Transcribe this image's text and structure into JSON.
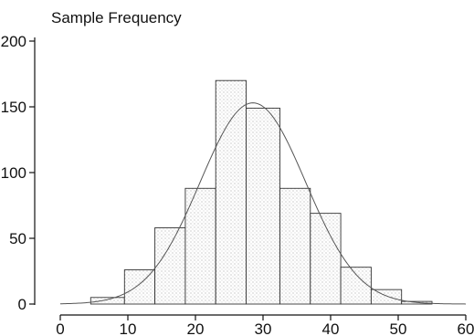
{
  "chart_data": {
    "type": "bar",
    "title": "Sample Frequency",
    "xlabel": "",
    "ylabel": "",
    "xlim": [
      0,
      60
    ],
    "ylim": [
      0,
      200
    ],
    "x_ticks": [
      0,
      10,
      20,
      30,
      40,
      50,
      60
    ],
    "y_ticks": [
      0,
      50,
      100,
      150,
      200
    ],
    "bins": [
      {
        "x0": 4.5,
        "x1": 9.5,
        "value": 5
      },
      {
        "x0": 9.5,
        "x1": 14,
        "value": 26
      },
      {
        "x0": 14,
        "x1": 18.5,
        "value": 58
      },
      {
        "x0": 18.5,
        "x1": 23,
        "value": 88
      },
      {
        "x0": 23,
        "x1": 27.5,
        "value": 170
      },
      {
        "x0": 27.5,
        "x1": 32.5,
        "value": 149
      },
      {
        "x0": 32.5,
        "x1": 37,
        "value": 88
      },
      {
        "x0": 37,
        "x1": 41.5,
        "value": 69
      },
      {
        "x0": 41.5,
        "x1": 46,
        "value": 28
      },
      {
        "x0": 46,
        "x1": 50.5,
        "value": 11
      },
      {
        "x0": 50.5,
        "x1": 55,
        "value": 2
      },
      {
        "x0": 55,
        "x1": 60,
        "value": 0
      }
    ],
    "normal_curve": {
      "mean": 28.5,
      "sd": 7.8,
      "peak": 153
    },
    "grid": false,
    "legend": "none"
  }
}
